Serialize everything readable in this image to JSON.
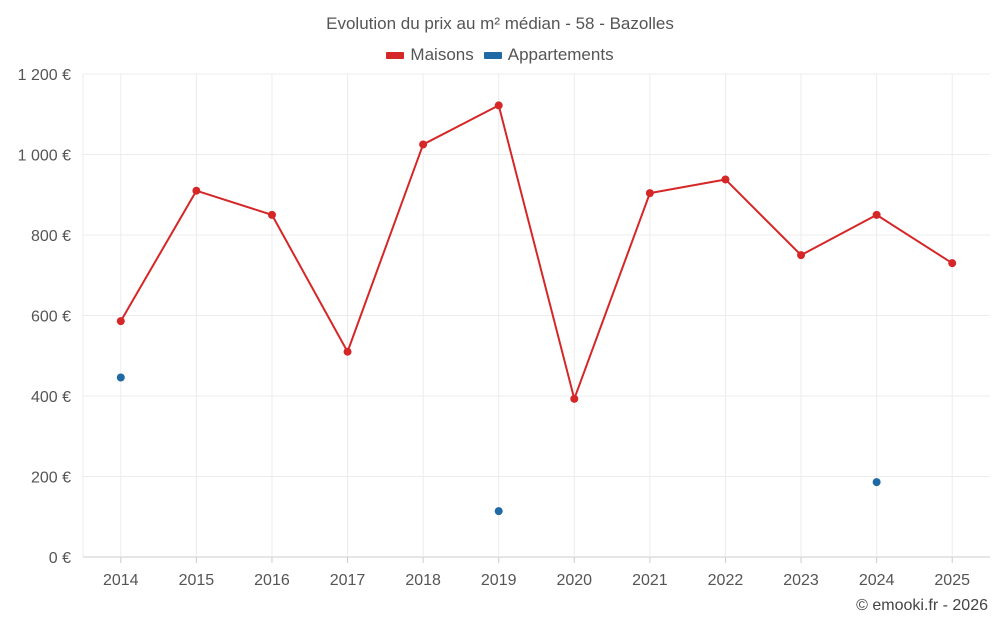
{
  "chart_data": {
    "type": "line",
    "title": "Evolution du prix au m² médian - 58 - Bazolles",
    "categories": [
      "2014",
      "2015",
      "2016",
      "2017",
      "2018",
      "2019",
      "2020",
      "2021",
      "2022",
      "2023",
      "2024",
      "2025"
    ],
    "series": [
      {
        "name": "Maisons",
        "color": "#d62728",
        "values": [
          586,
          910,
          850,
          510,
          1025,
          1122,
          393,
          904,
          938,
          750,
          850,
          730
        ],
        "connected": true
      },
      {
        "name": "Appartements",
        "color": "#1f6aa5",
        "values": [
          446,
          null,
          null,
          null,
          null,
          114,
          null,
          null,
          null,
          null,
          186,
          null
        ],
        "connected": false
      }
    ],
    "y_ticks": [
      {
        "value": 0,
        "label": "0 €"
      },
      {
        "value": 200,
        "label": "200 €"
      },
      {
        "value": 400,
        "label": "400 €"
      },
      {
        "value": 600,
        "label": "600 €"
      },
      {
        "value": 800,
        "label": "800 €"
      },
      {
        "value": 1000,
        "label": "1 000 €"
      },
      {
        "value": 1200,
        "label": "1 200 €"
      }
    ],
    "ylim": [
      0,
      1200
    ],
    "xlabel": "",
    "ylabel": "",
    "grid": true,
    "legend_position": "top-center"
  },
  "credit": "© emooki.fr - 2026"
}
